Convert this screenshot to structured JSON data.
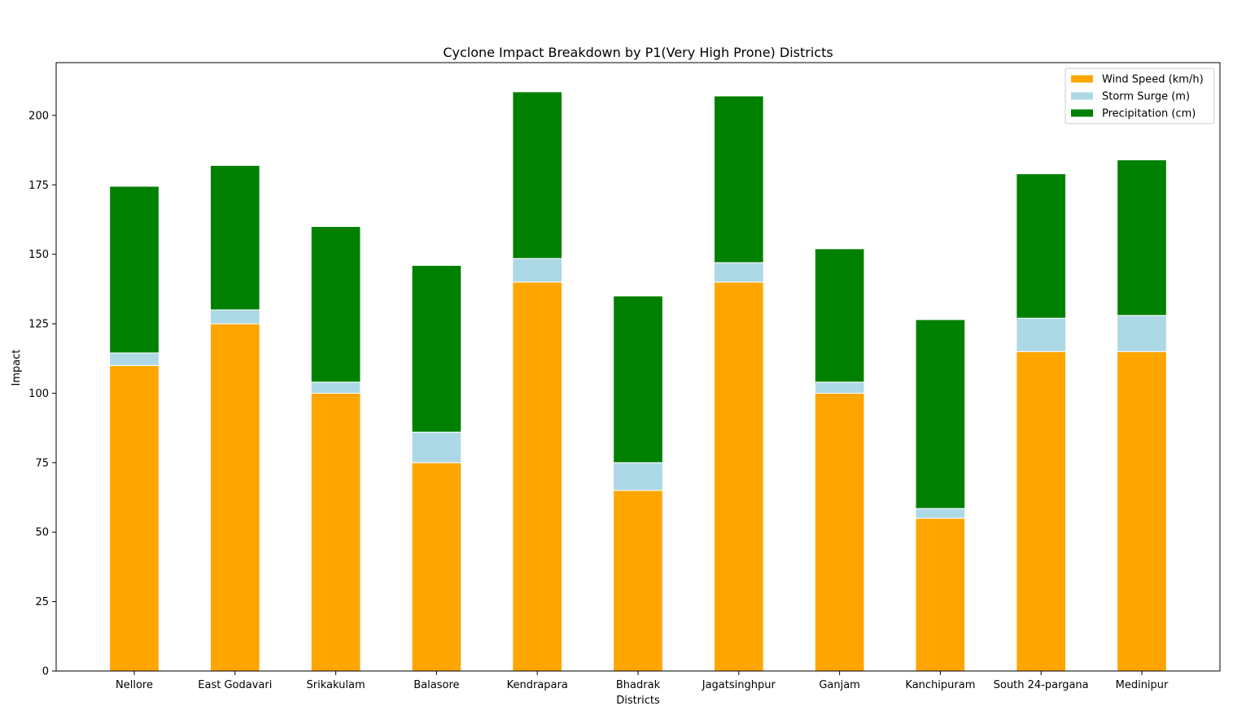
{
  "chart_data": {
    "type": "bar",
    "stacked": true,
    "title": "Cyclone Impact Breakdown by P1(Very High Prone) Districts",
    "xlabel": "Districts",
    "ylabel": "Impact",
    "ylim": [
      0,
      219
    ],
    "yticks": [
      0,
      25,
      50,
      75,
      100,
      125,
      150,
      175,
      200
    ],
    "grid": false,
    "legend_position": "top-right",
    "categories": [
      "Nellore",
      "East Godavari",
      "Srikakulam",
      "Balasore",
      "Kendrapara",
      "Bhadrak",
      "Jagatsinghpur",
      "Ganjam",
      "Kanchipuram",
      "South 24-pargana",
      "Medinipur"
    ],
    "series": [
      {
        "name": "Wind Speed (km/h)",
        "color": "#FFA500",
        "values": [
          110,
          125,
          100,
          75,
          140,
          65,
          140,
          100,
          55,
          115,
          115
        ]
      },
      {
        "name": "Storm Surge (m)",
        "color": "#ADD8E6",
        "values": [
          4.5,
          5,
          4,
          11,
          8.5,
          10,
          7,
          4,
          3.5,
          12,
          13
        ]
      },
      {
        "name": "Precipitation (cm)",
        "color": "#008000",
        "values": [
          60,
          52,
          56,
          60,
          60,
          60,
          60,
          48,
          68,
          52,
          56
        ]
      }
    ]
  }
}
